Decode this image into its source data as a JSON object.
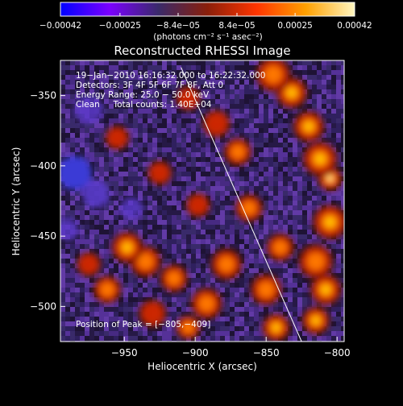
{
  "chart_data": {
    "type": "heatmap",
    "title": "Reconstructed RHESSI Image",
    "xlabel": "Heliocentric X (arcsec)",
    "ylabel": "Heliocentric Y (arcsec)",
    "xlim": [
      -995,
      -795
    ],
    "ylim": [
      -525,
      -325
    ],
    "x_ticks": [
      {
        "value": -950,
        "label": "−950"
      },
      {
        "value": -900,
        "label": "−900"
      },
      {
        "value": -850,
        "label": "−850"
      },
      {
        "value": -800,
        "label": "−800"
      }
    ],
    "y_ticks": [
      {
        "value": -350,
        "label": "−350"
      },
      {
        "value": -400,
        "label": "−400"
      },
      {
        "value": -450,
        "label": "−450"
      },
      {
        "value": -500,
        "label": "−500"
      }
    ],
    "colorbar": {
      "range": [
        -0.00042,
        0.00042
      ],
      "ticks": [
        {
          "value": -0.00042,
          "label": "−0.00042"
        },
        {
          "value": -0.00025,
          "label": "−0.00025"
        },
        {
          "value": -8.4e-05,
          "label": "−8.4e−05"
        },
        {
          "value": 8.4e-05,
          "label": "8.4e−05"
        },
        {
          "value": 0.00025,
          "label": "0.00025"
        },
        {
          "value": 0.00042,
          "label": "0.00042"
        }
      ],
      "unit_label": "(photons cm⁻² s⁻¹ asec⁻²)",
      "colors": [
        "#0000ff",
        "#7b00ff",
        "#3a2a6a",
        "#8a1f0a",
        "#ff3500",
        "#ffa000",
        "#fff6c0"
      ]
    },
    "info_lines": [
      "19−Jan−2010 16:16:32.000 to 16:22:32.000",
      "Detectors: 3F 4F 5F 6F 7F 8F, Att 0",
      "Energy Range: 25.0 − 50.0 keV",
      "Clean     Total counts: 1.40E+04"
    ],
    "peak_label": "Position of Peak = [−805,−409]",
    "peak_position": [
      -805,
      -409
    ],
    "limb_line": {
      "x": [
        -910,
        -825
      ],
      "y": [
        -330,
        -525
      ]
    },
    "hot_regions": [
      {
        "x": -805,
        "y": -409,
        "intensity": 1.0,
        "radius": 7
      },
      {
        "x": -812,
        "y": -395,
        "intensity": 0.85,
        "radius": 10
      },
      {
        "x": -820,
        "y": -372,
        "intensity": 0.8,
        "radius": 9
      },
      {
        "x": -832,
        "y": -348,
        "intensity": 0.75,
        "radius": 9
      },
      {
        "x": -845,
        "y": -335,
        "intensity": 0.7,
        "radius": 10
      },
      {
        "x": -805,
        "y": -440,
        "intensity": 0.75,
        "radius": 10
      },
      {
        "x": -815,
        "y": -468,
        "intensity": 0.7,
        "radius": 10
      },
      {
        "x": -808,
        "y": -488,
        "intensity": 0.9,
        "radius": 9
      },
      {
        "x": -815,
        "y": -510,
        "intensity": 0.8,
        "radius": 8
      },
      {
        "x": -840,
        "y": -458,
        "intensity": 0.65,
        "radius": 8
      },
      {
        "x": -850,
        "y": -488,
        "intensity": 0.7,
        "radius": 9
      },
      {
        "x": -843,
        "y": -515,
        "intensity": 0.75,
        "radius": 8
      },
      {
        "x": -862,
        "y": -430,
        "intensity": 0.6,
        "radius": 8
      },
      {
        "x": -878,
        "y": -470,
        "intensity": 0.65,
        "radius": 9
      },
      {
        "x": -892,
        "y": -498,
        "intensity": 0.7,
        "radius": 9
      },
      {
        "x": -870,
        "y": -390,
        "intensity": 0.6,
        "radius": 8
      },
      {
        "x": -885,
        "y": -370,
        "intensity": 0.55,
        "radius": 8
      },
      {
        "x": -905,
        "y": -352,
        "intensity": 0.55,
        "radius": 7
      },
      {
        "x": -935,
        "y": -468,
        "intensity": 0.7,
        "radius": 9
      },
      {
        "x": -948,
        "y": -458,
        "intensity": 0.75,
        "radius": 9
      },
      {
        "x": -915,
        "y": -480,
        "intensity": 0.6,
        "radius": 8
      },
      {
        "x": -962,
        "y": -488,
        "intensity": 0.6,
        "radius": 8
      },
      {
        "x": -975,
        "y": -470,
        "intensity": 0.55,
        "radius": 7
      },
      {
        "x": -930,
        "y": -505,
        "intensity": 0.55,
        "radius": 8
      },
      {
        "x": -905,
        "y": -515,
        "intensity": 0.6,
        "radius": 7
      },
      {
        "x": -955,
        "y": -380,
        "intensity": 0.5,
        "radius": 7
      },
      {
        "x": -925,
        "y": -405,
        "intensity": 0.45,
        "radius": 7
      },
      {
        "x": -898,
        "y": -428,
        "intensity": 0.5,
        "radius": 7
      }
    ],
    "cold_regions": [
      {
        "x": -985,
        "y": -405,
        "intensity": 1.0,
        "radius": 12
      },
      {
        "x": -970,
        "y": -420,
        "intensity": 0.8,
        "radius": 10
      },
      {
        "x": -975,
        "y": -360,
        "intensity": 0.6,
        "radius": 10
      },
      {
        "x": -945,
        "y": -430,
        "intensity": 0.55,
        "radius": 8
      },
      {
        "x": -990,
        "y": -445,
        "intensity": 0.6,
        "radius": 8
      }
    ]
  }
}
